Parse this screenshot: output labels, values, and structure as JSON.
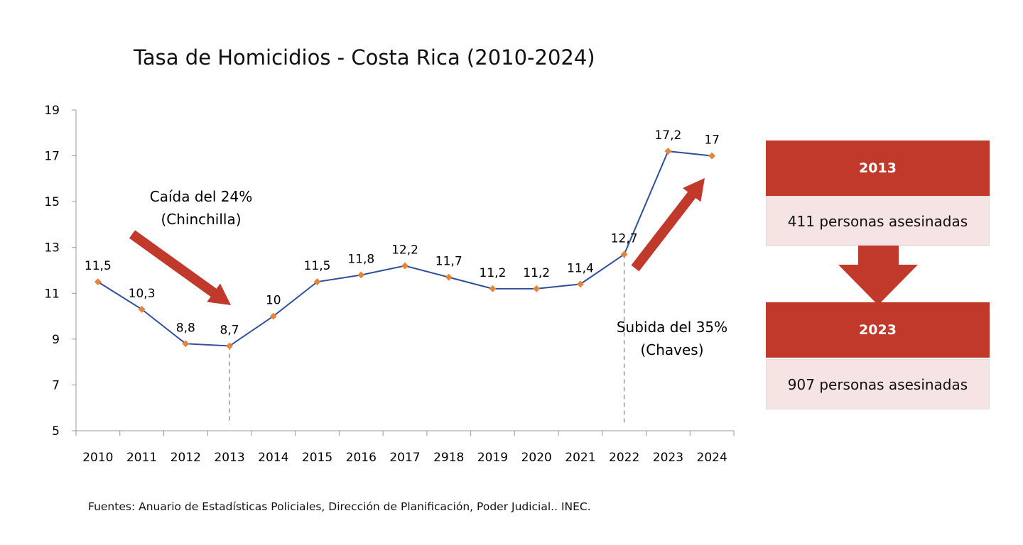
{
  "chart_data": {
    "type": "line",
    "title": "Tasa de Homicidios - Costa Rica (2010-2024)",
    "categories": [
      "2010",
      "2011",
      "2012",
      "2013",
      "2014",
      "2015",
      "2016",
      "2017",
      "2918",
      "2019",
      "2020",
      "2021",
      "2022",
      "2023",
      "2024"
    ],
    "series": [
      {
        "values": [
          11.5,
          10.3,
          8.8,
          8.7,
          10,
          11.5,
          11.8,
          12.2,
          11.7,
          11.2,
          11.2,
          11.4,
          12.7,
          17.2,
          17
        ]
      }
    ],
    "data_labels": [
      "11,5",
      "10,3",
      "8,8",
      "8,7",
      "10",
      "11,5",
      "11,8",
      "12,2",
      "11,7",
      "11,2",
      "11,2",
      "11,4",
      "12,7",
      "17,2",
      "17"
    ],
    "ylim": [
      5,
      19
    ],
    "yticks": [
      "5",
      "7",
      "9",
      "11",
      "13",
      "15",
      "17",
      "19"
    ],
    "grid": false,
    "line_color": "#2f4f9a",
    "marker_color": "#e8843a",
    "arrow_color": "#c0392b",
    "annotations": [
      {
        "lines": [
          "Caída del 24%",
          "(Chinchilla)"
        ],
        "year": "2013",
        "direction": "down"
      },
      {
        "lines": [
          "Subida del 35%",
          "(Chaves)"
        ],
        "year": "2022",
        "direction": "up"
      }
    ]
  },
  "source": "Fuentes: Anuario de Estadísticas Policiales, Dirección de Planificación, Poder Judicial.. INEC.",
  "side_panel": {
    "box1": {
      "year": "2013",
      "text": "411 personas asesinadas"
    },
    "box2": {
      "year": "2023",
      "text": "907 personas asesinadas"
    }
  }
}
